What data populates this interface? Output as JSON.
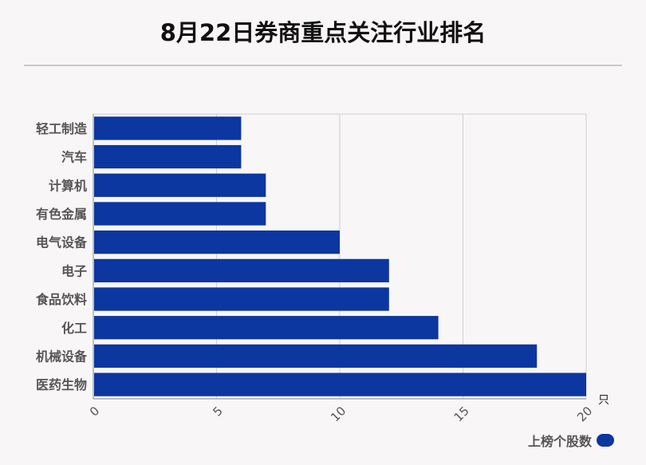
{
  "title": "8月22日券商重点关注行业排名",
  "chart_data": {
    "type": "bar",
    "orientation": "horizontal",
    "categories": [
      "轻工制造",
      "汽车",
      "计算机",
      "有色金属",
      "电气设备",
      "电子",
      "食品饮料",
      "化工",
      "机械设备",
      "医药生物"
    ],
    "series": [
      {
        "name": "上榜个股数",
        "values": [
          6,
          6,
          7,
          7,
          10,
          12,
          12,
          14,
          18,
          20
        ]
      }
    ],
    "x_ticks": [
      "0",
      "5",
      "10",
      "15",
      "20"
    ],
    "xlim": [
      0,
      20
    ],
    "x_unit": "只",
    "grid": true,
    "legend_position": "bottom-right",
    "bar_color": "#0c36a0"
  }
}
